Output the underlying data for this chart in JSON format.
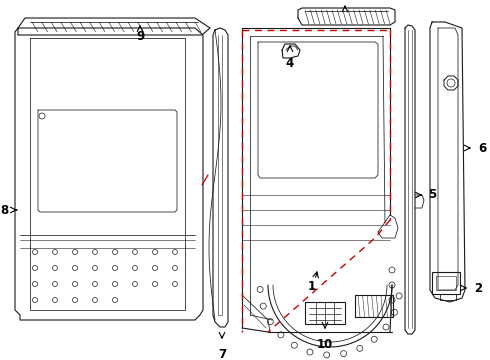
{
  "bg_color": "#ffffff",
  "lc": "#1a1a1a",
  "rc": "#cc0000",
  "figsize": [
    4.9,
    3.6
  ],
  "dpi": 100
}
